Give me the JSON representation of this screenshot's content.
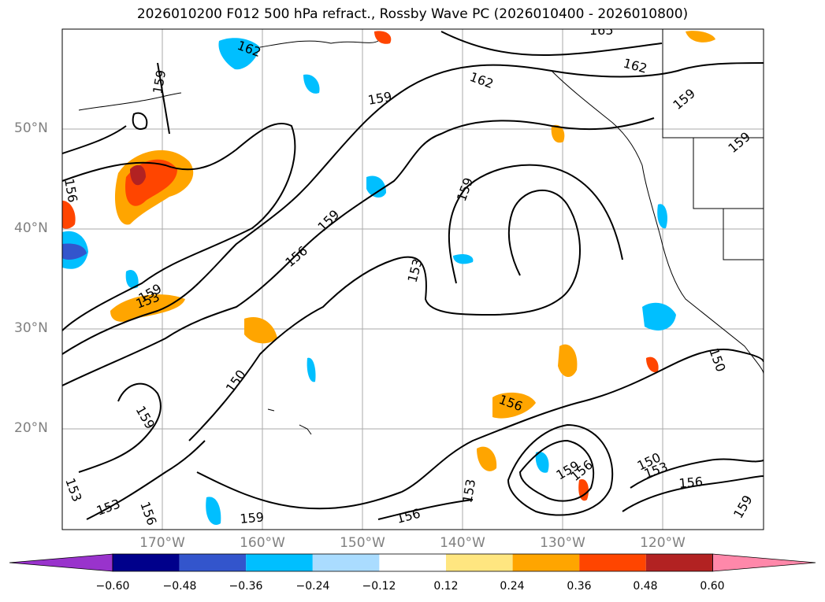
{
  "title": "2026010200 F012 500 hPa refract., Rossby Wave PC (2026010400 - 2026010800)",
  "map": {
    "lat_labels": [
      "50°N",
      "40°N",
      "30°N",
      "20°N"
    ],
    "lon_labels": [
      "170°W",
      "160°W",
      "150°W",
      "140°W",
      "130°W",
      "120°W"
    ],
    "contour_labels": [
      "165",
      "162",
      "162",
      "162",
      "159",
      "159",
      "159",
      "159",
      "159",
      "159",
      "159",
      "159",
      "159",
      "159",
      "159",
      "156",
      "156",
      "156",
      "156",
      "156",
      "156",
      "156",
      "153",
      "153",
      "153",
      "153",
      "153",
      "153",
      "150",
      "150",
      "150"
    ],
    "land_color": "#ffffff",
    "contour_color": "#000000"
  },
  "colorbar": {
    "ticks": [
      "−0.60",
      "−0.48",
      "−0.36",
      "−0.24",
      "−0.12",
      "0.12",
      "0.24",
      "0.36",
      "0.48",
      "0.60"
    ],
    "colors": [
      "#9933cc",
      "#00008b",
      "#3355cc",
      "#00bfff",
      "#aadcff",
      "#ffffff",
      "#ffe680",
      "#ffa500",
      "#ff4500",
      "#b22222",
      "#ff88aa"
    ]
  }
}
